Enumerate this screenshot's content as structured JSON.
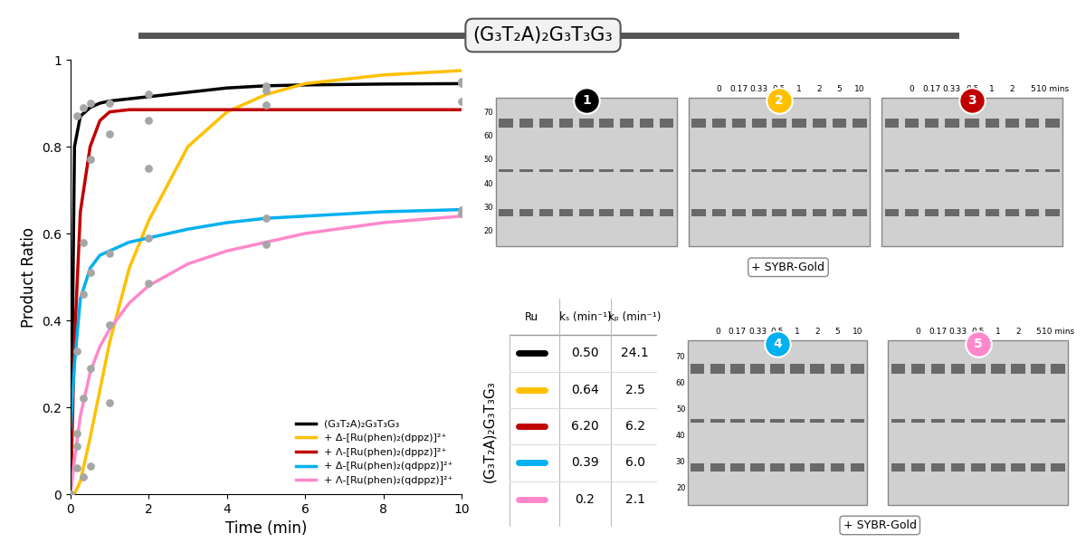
{
  "title": "(G₃T₂A)₂G₃T₃G₃",
  "chart_data": {
    "type": "line",
    "x_label": "Time (min)",
    "y_label": "Product Ratio",
    "xlim": [
      0,
      10
    ],
    "xticks": [
      0,
      2,
      4,
      6,
      8,
      10
    ],
    "ylim": [
      0,
      1
    ],
    "yticks": [
      0,
      0.2,
      0.4,
      0.6,
      0.8,
      1
    ],
    "grid": false,
    "legend": "lower right",
    "points_color": "#a6a6a6",
    "x": [
      0,
      0.1,
      0.25,
      0.5,
      0.75,
      1,
      1.5,
      2,
      3,
      4,
      5,
      6,
      8,
      10
    ],
    "points_x": [
      0,
      0.17,
      0.33,
      0.5,
      1,
      2,
      5,
      10
    ],
    "series": [
      {
        "name": "(G₃T₂A)₂G₃T₃G₃",
        "color": "#000000",
        "values": [
          0,
          0.8,
          0.87,
          0.89,
          0.9,
          0.905,
          0.91,
          0.915,
          0.925,
          0.935,
          0.94,
          0.942,
          0.944,
          0.945
        ],
        "points": [
          0,
          0.87,
          0.89,
          0.9,
          0.9,
          0.92,
          0.94,
          0.95
        ]
      },
      {
        "name": "+ Δ-[Ru(phen)₂(dppz)]²⁺",
        "color": "#ffc000",
        "values": [
          0,
          0,
          0.03,
          0.13,
          0.24,
          0.35,
          0.52,
          0.63,
          0.8,
          0.88,
          0.92,
          0.945,
          0.965,
          0.975
        ],
        "points": [
          0,
          0.06,
          0.04,
          0.065,
          0.21,
          0.75,
          0.93,
          0.945
        ]
      },
      {
        "name": "+ Λ-[Ru(phen)₂(dppz)]²⁺",
        "color": "#c00000",
        "values": [
          0,
          0.35,
          0.65,
          0.8,
          0.86,
          0.88,
          0.885,
          0.885,
          0.885,
          0.885,
          0.885,
          0.885,
          0.885,
          0.885
        ],
        "points": [
          0,
          0.33,
          0.58,
          0.77,
          0.83,
          0.86,
          0.895,
          0.905
        ]
      },
      {
        "name": "+ Δ-[Ru(phen)₂(qdppz)]²⁺",
        "color": "#00b0f0",
        "values": [
          0.15,
          0.3,
          0.45,
          0.52,
          0.55,
          0.56,
          0.58,
          0.59,
          0.61,
          0.625,
          0.635,
          0.64,
          0.65,
          0.655
        ],
        "points": [
          0,
          0.14,
          0.46,
          0.51,
          0.555,
          0.59,
          0.635,
          0.655
        ]
      },
      {
        "name": "+ Λ-[Ru(phen)₂(qdppz)]²⁺",
        "color": "#ff88cc",
        "values": [
          0,
          0.08,
          0.18,
          0.28,
          0.34,
          0.38,
          0.44,
          0.48,
          0.53,
          0.56,
          0.58,
          0.6,
          0.625,
          0.64
        ],
        "points": [
          0,
          0.11,
          0.22,
          0.29,
          0.39,
          0.485,
          0.575,
          0.645
        ]
      }
    ]
  },
  "table": {
    "row_label": "(G₃T₂A)₂G₃T₃G₃",
    "header": [
      "Ru",
      "kₛ (min⁻¹)",
      "kₚ (min⁻¹)"
    ],
    "rows": [
      {
        "color": "#000000",
        "k_s": {
          "value": 0.5,
          "label": "0.50"
        },
        "k_p": 24.1
      },
      {
        "color": "#ffc000",
        "k_s": 0.64,
        "k_p": 2.5
      },
      {
        "color": "#c00000",
        "k_s": {
          "value": 6.2,
          "label": "6.20"
        },
        "k_p": 6.2
      },
      {
        "color": "#00b0f0",
        "k_s": 0.39,
        "k_p": {
          "value": 6.0,
          "label": "6.0"
        }
      },
      {
        "color": "#ff88cc",
        "k_s": 0.2,
        "k_p": 2.1
      }
    ]
  },
  "gels": {
    "stain": "+ SYBR-Gold",
    "ladder": [
      "70",
      "60",
      "50",
      "40",
      "30",
      "20"
    ],
    "panels": [
      {
        "label": "1",
        "color": "#000000",
        "times": []
      },
      {
        "label": "2",
        "color": "#ffc000",
        "times": [
          "0",
          "0.17",
          "0.33",
          "0.5",
          "1",
          "2",
          "5",
          "10"
        ]
      },
      {
        "label": "3",
        "color": "#c00000",
        "times": [
          "0",
          "0.17",
          "0.33",
          "0.5",
          "1",
          "2",
          "5",
          "10 mins"
        ]
      },
      {
        "label": "4",
        "color": "#00b0f0",
        "times": [
          "0",
          "0.17",
          "0.33",
          "0.5",
          "1",
          "2",
          "5",
          "10"
        ]
      },
      {
        "label": "5",
        "color": "#ff88cc",
        "times": [
          "0",
          "0.17",
          "0.33",
          "0.5",
          "1",
          "2",
          "5",
          "10 mins"
        ]
      }
    ]
  }
}
